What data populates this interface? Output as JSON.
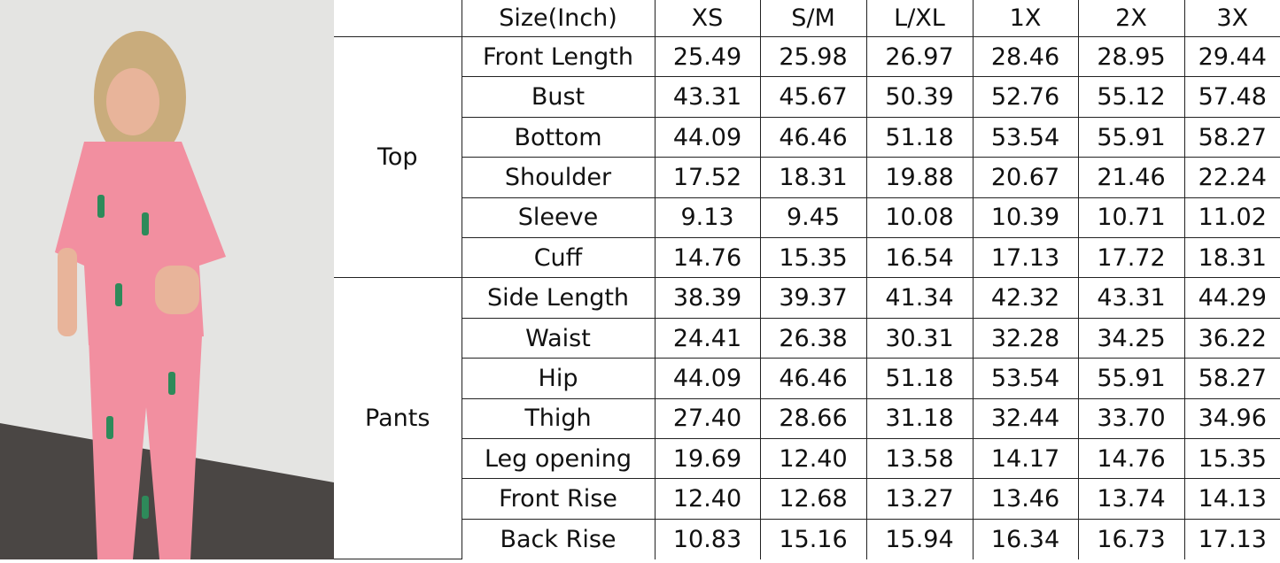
{
  "header": {
    "corner": "",
    "label": "Size(Inch)",
    "sizes": [
      "XS",
      "S/M",
      "L/XL",
      "1X",
      "2X",
      "3X"
    ]
  },
  "groups": [
    {
      "name": "Top",
      "rows": [
        {
          "label": "Front Length",
          "values": [
            "25.49",
            "25.98",
            "26.97",
            "28.46",
            "28.95",
            "29.44"
          ]
        },
        {
          "label": "Bust",
          "values": [
            "43.31",
            "45.67",
            "50.39",
            "52.76",
            "55.12",
            "57.48"
          ]
        },
        {
          "label": "Bottom",
          "values": [
            "44.09",
            "46.46",
            "51.18",
            "53.54",
            "55.91",
            "58.27"
          ]
        },
        {
          "label": "Shoulder",
          "values": [
            "17.52",
            "18.31",
            "19.88",
            "20.67",
            "21.46",
            "22.24"
          ]
        },
        {
          "label": "Sleeve",
          "values": [
            "9.13",
            "9.45",
            "10.08",
            "10.39",
            "10.71",
            "11.02"
          ]
        },
        {
          "label": "Cuff",
          "values": [
            "14.76",
            "15.35",
            "16.54",
            "17.13",
            "17.72",
            "18.31"
          ]
        }
      ]
    },
    {
      "name": "Pants",
      "rows": [
        {
          "label": "Side Length",
          "values": [
            "38.39",
            "39.37",
            "41.34",
            "42.32",
            "43.31",
            "44.29"
          ]
        },
        {
          "label": "Waist",
          "values": [
            "24.41",
            "26.38",
            "30.31",
            "32.28",
            "34.25",
            "36.22"
          ]
        },
        {
          "label": "Hip",
          "values": [
            "44.09",
            "46.46",
            "51.18",
            "53.54",
            "55.91",
            "58.27"
          ]
        },
        {
          "label": "Thigh",
          "values": [
            "27.40",
            "28.66",
            "31.18",
            "32.44",
            "33.70",
            "34.96"
          ]
        },
        {
          "label": "Leg opening",
          "values": [
            "19.69",
            "12.40",
            "13.58",
            "14.17",
            "14.76",
            "15.35"
          ]
        },
        {
          "label": "Front Rise",
          "values": [
            "12.40",
            "12.68",
            "13.27",
            "13.46",
            "13.74",
            "14.13"
          ]
        },
        {
          "label": "Back Rise",
          "values": [
            "10.83",
            "15.16",
            "15.94",
            "16.34",
            "16.73",
            "17.13"
          ]
        }
      ]
    }
  ],
  "colors": {
    "pajama": "#f28fa0",
    "wall": "#e6e6e4",
    "floor": "#4a4644"
  }
}
